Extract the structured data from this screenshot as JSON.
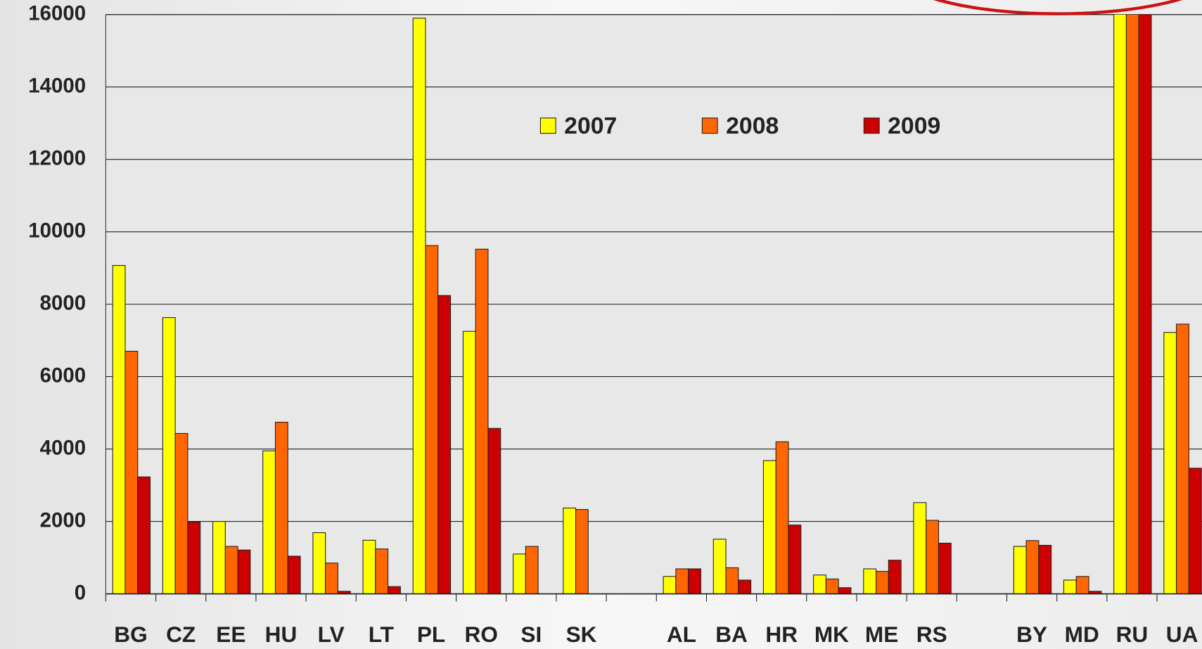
{
  "chart_data": {
    "type": "bar",
    "categories": [
      "BG",
      "CZ",
      "EE",
      "HU",
      "LV",
      "LT",
      "PL",
      "RO",
      "SI",
      "SK",
      null,
      "AL",
      "BA",
      "HR",
      "MK",
      "ME",
      "RS",
      null,
      "BY",
      "MD",
      "RU",
      "UA"
    ],
    "series": [
      {
        "name": "2007",
        "color": "#ffff00",
        "values": [
          9070,
          7630,
          2000,
          3950,
          1690,
          1480,
          15900,
          7250,
          1100,
          2370,
          null,
          480,
          1510,
          3680,
          520,
          690,
          2520,
          null,
          1310,
          380,
          16500,
          7220
        ]
      },
      {
        "name": "2008",
        "color": "#ff6600",
        "values": [
          6700,
          4430,
          1310,
          4740,
          850,
          1240,
          9620,
          9520,
          1310,
          2330,
          null,
          690,
          720,
          4200,
          410,
          620,
          2030,
          null,
          1470,
          480,
          16500,
          7450
        ]
      },
      {
        "name": "2009",
        "color": "#cc0000",
        "values": [
          3230,
          1980,
          1210,
          1040,
          70,
          200,
          8240,
          4570,
          null,
          null,
          null,
          690,
          380,
          1900,
          170,
          930,
          1400,
          null,
          1340,
          70,
          16500,
          3470
        ]
      }
    ],
    "ylim": [
      0,
      16000
    ],
    "yticks": [
      0,
      2000,
      4000,
      6000,
      8000,
      10000,
      12000,
      14000,
      16000
    ],
    "grid": true,
    "legend": "top"
  }
}
